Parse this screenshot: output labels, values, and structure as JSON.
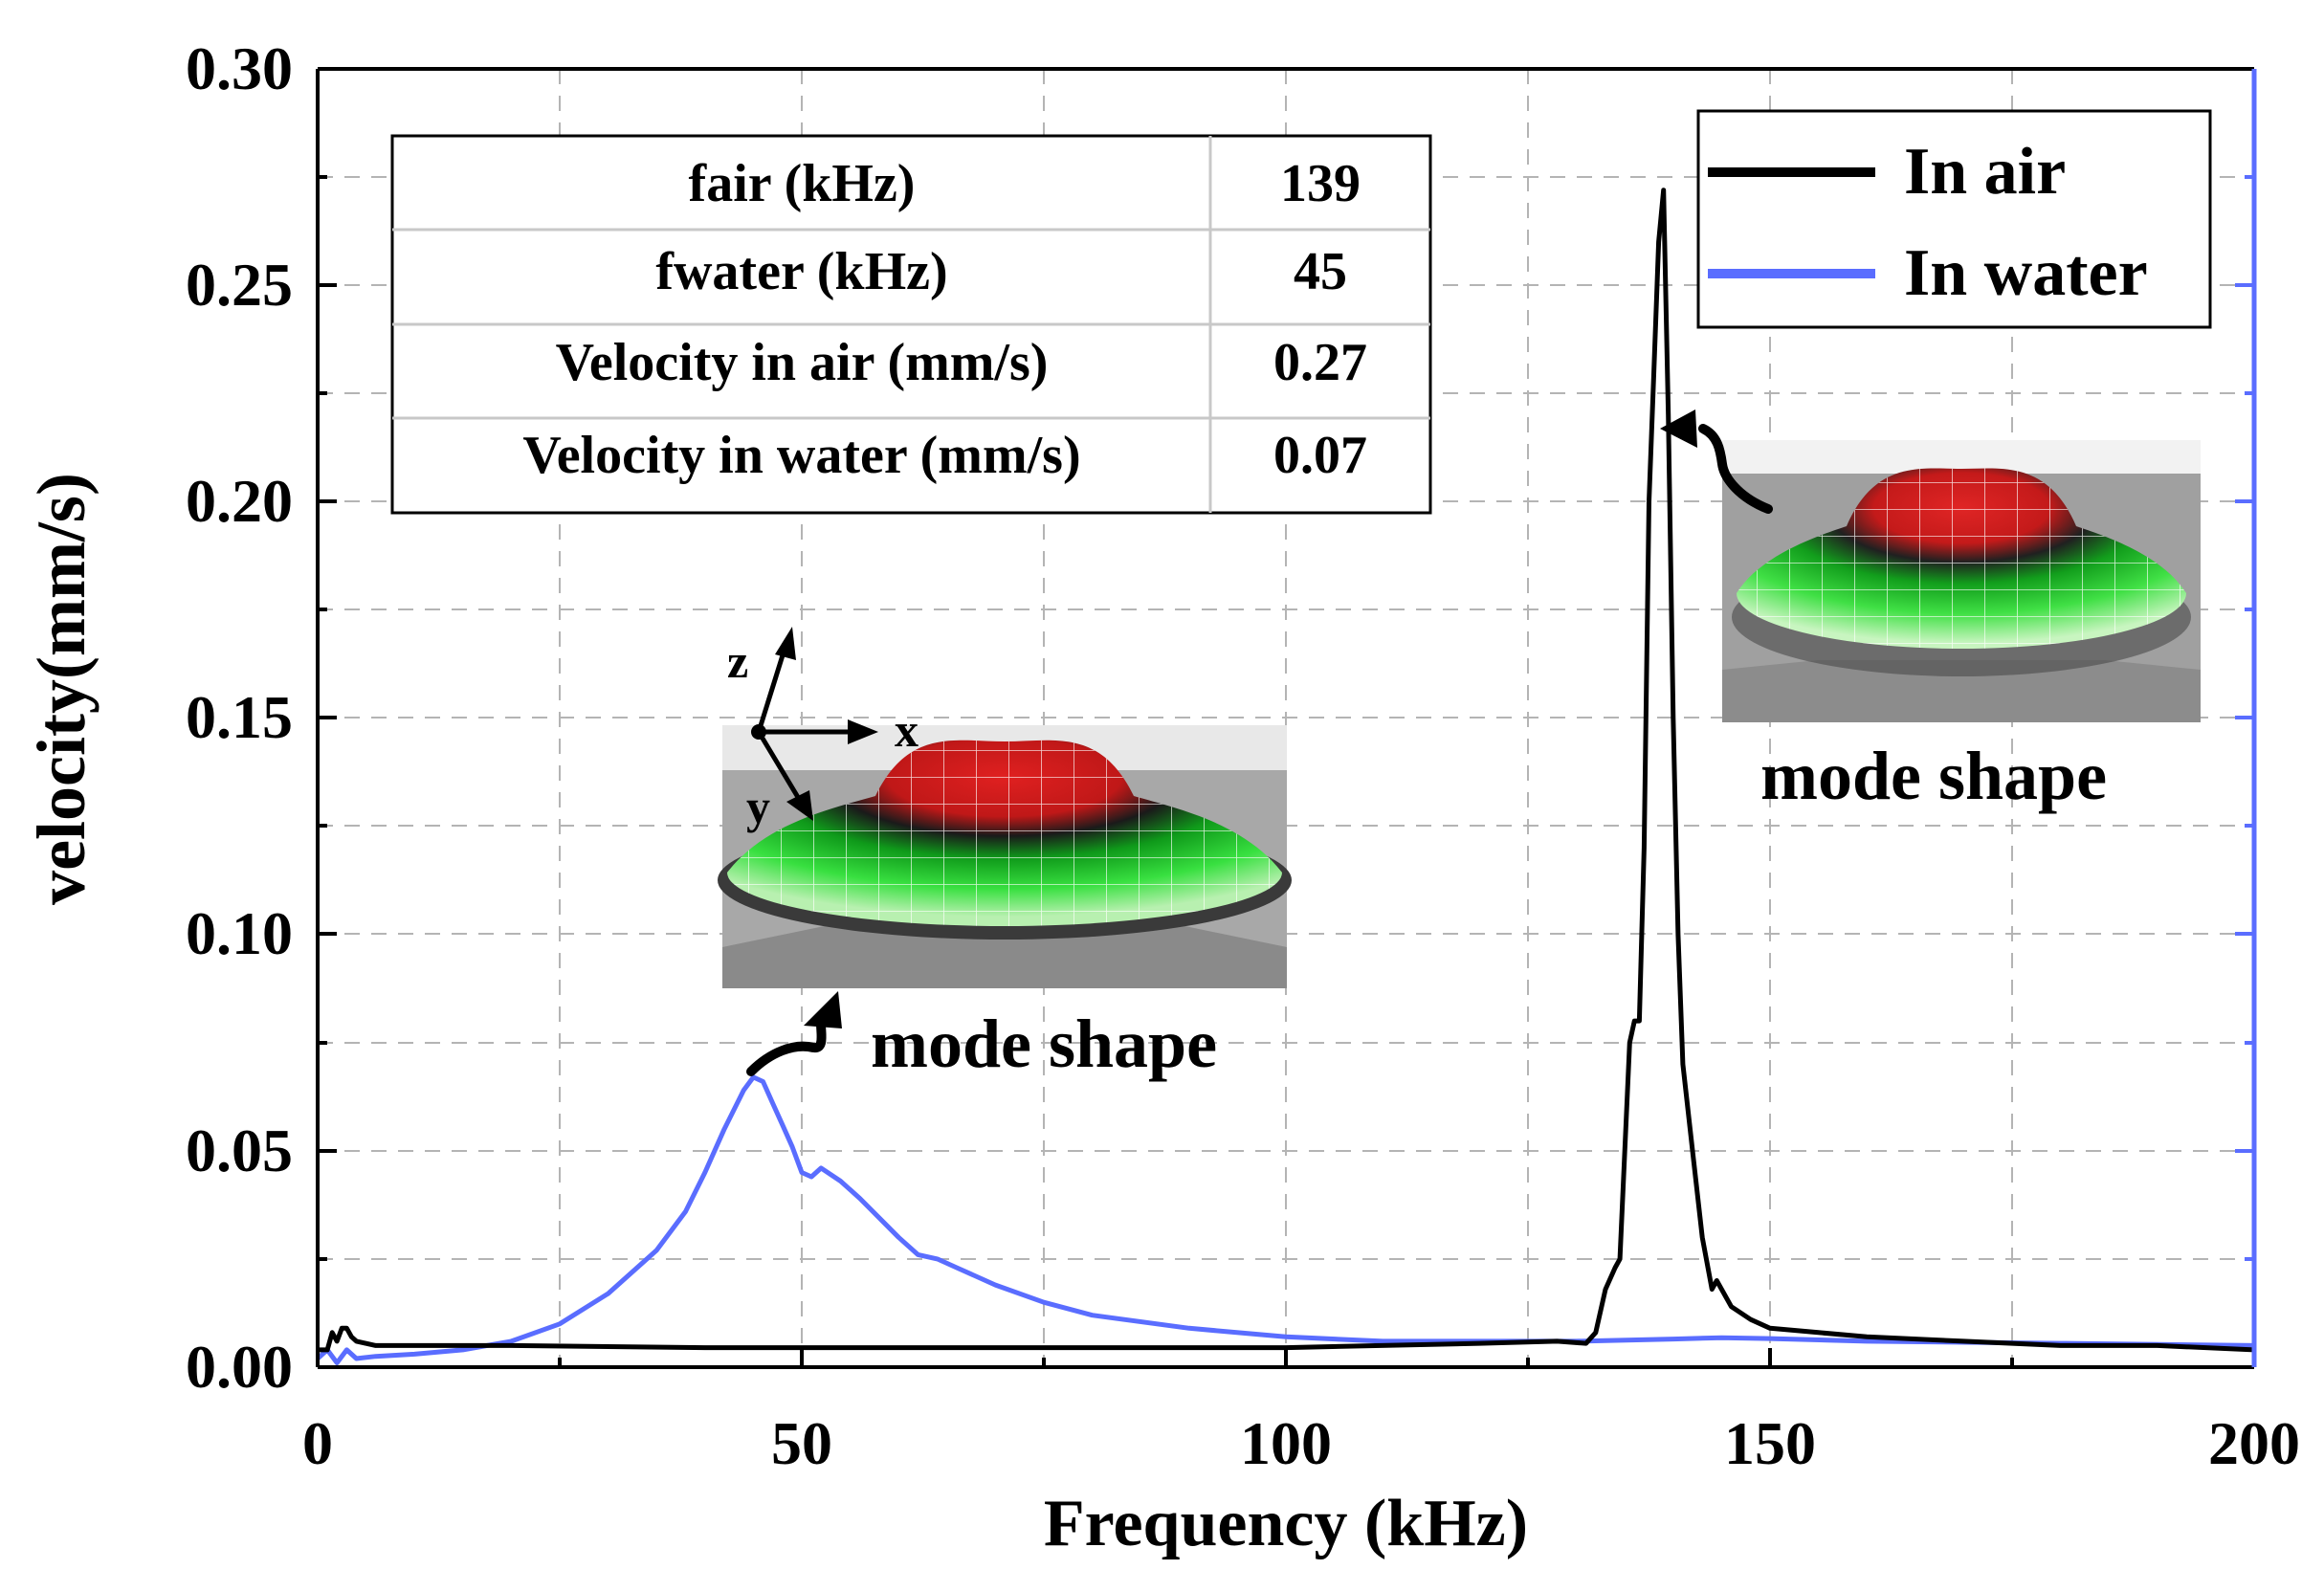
{
  "chart_data": {
    "type": "line",
    "xlabel": "Frequency (kHz)",
    "ylabel": "velocity(mm/s)",
    "xlim": [
      0,
      200
    ],
    "ylim": [
      0,
      0.3
    ],
    "xticks": [
      "0",
      "50",
      "100",
      "150",
      "200"
    ],
    "yticks": [
      "0.00",
      "0.05",
      "0.10",
      "0.15",
      "0.20",
      "0.25",
      "0.30"
    ],
    "grid": true,
    "legend_position": "top-right",
    "series": [
      {
        "name": "In air",
        "color": "#000000",
        "x": [
          0,
          1,
          1.5,
          2,
          2.5,
          3,
          3.5,
          4,
          6,
          10,
          20,
          40,
          60,
          80,
          100,
          120,
          128,
          131,
          132,
          133,
          134,
          134.5,
          135,
          135.5,
          136,
          136.5,
          137,
          137.5,
          138,
          138.5,
          139,
          139.5,
          140,
          140.5,
          141,
          142,
          143,
          144,
          144.5,
          145,
          146,
          148,
          150,
          155,
          160,
          170,
          180,
          190,
          200
        ],
        "y": [
          0.004,
          0.004,
          0.008,
          0.006,
          0.009,
          0.009,
          0.007,
          0.006,
          0.005,
          0.005,
          0.005,
          0.0045,
          0.0045,
          0.0045,
          0.0045,
          0.0055,
          0.006,
          0.0055,
          0.008,
          0.018,
          0.023,
          0.025,
          0.05,
          0.075,
          0.08,
          0.08,
          0.12,
          0.2,
          0.23,
          0.26,
          0.272,
          0.22,
          0.15,
          0.1,
          0.07,
          0.05,
          0.03,
          0.018,
          0.02,
          0.018,
          0.014,
          0.011,
          0.009,
          0.008,
          0.007,
          0.006,
          0.005,
          0.005,
          0.004
        ]
      },
      {
        "name": "In water",
        "color": "#5a6dff",
        "x": [
          0,
          1,
          2,
          3,
          4,
          6,
          10,
          15,
          20,
          25,
          30,
          35,
          38,
          40,
          42,
          44,
          45,
          46,
          47,
          48,
          49,
          50,
          51,
          52,
          54,
          56,
          60,
          62,
          64,
          66,
          70,
          75,
          80,
          90,
          100,
          110,
          120,
          130,
          140,
          145,
          150,
          160,
          180,
          200
        ],
        "y": [
          0.002,
          0.004,
          0.001,
          0.004,
          0.002,
          0.0025,
          0.003,
          0.004,
          0.006,
          0.01,
          0.017,
          0.027,
          0.036,
          0.045,
          0.055,
          0.064,
          0.067,
          0.066,
          0.061,
          0.056,
          0.051,
          0.045,
          0.044,
          0.046,
          0.043,
          0.039,
          0.03,
          0.026,
          0.025,
          0.023,
          0.019,
          0.015,
          0.012,
          0.009,
          0.007,
          0.006,
          0.006,
          0.006,
          0.0065,
          0.0068,
          0.0066,
          0.006,
          0.0055,
          0.005
        ]
      }
    ],
    "table": {
      "rows": [
        {
          "label": "fair (kHz)",
          "value": "139"
        },
        {
          "label": "fwater (kHz)",
          "value": "45"
        },
        {
          "label": "Velocity in air (mm/s)",
          "value": "0.27"
        },
        {
          "label": "Velocity in water (mm/s)",
          "value": "0.07"
        }
      ]
    },
    "annotations": {
      "mode_shape_left": "mode shape",
      "mode_shape_right": "mode shape",
      "axis_z": "z",
      "axis_x": "x",
      "axis_y": "y"
    }
  }
}
